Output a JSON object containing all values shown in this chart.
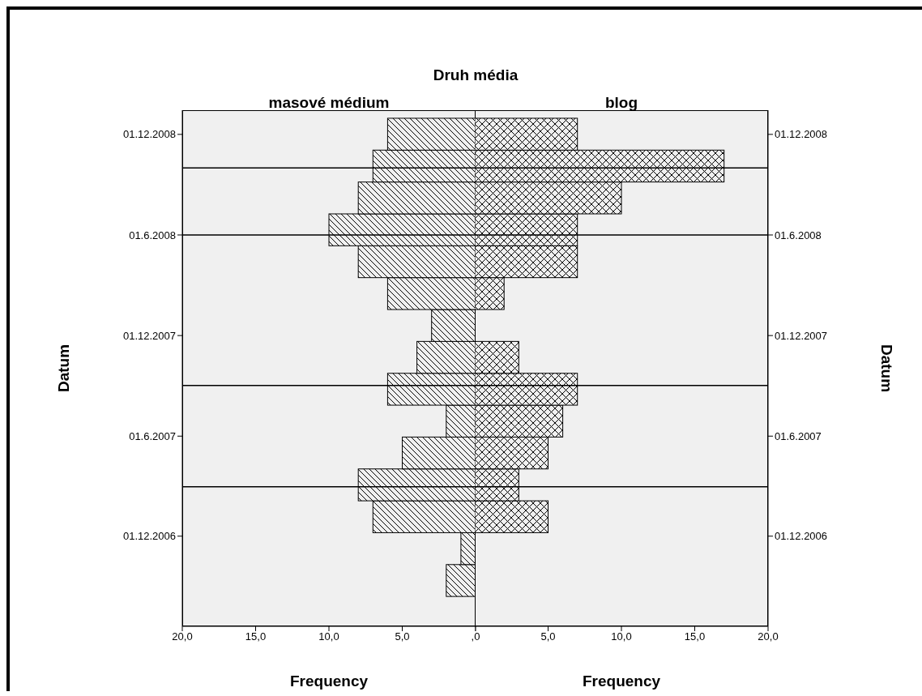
{
  "chart_data": [
    {
      "type": "histogram",
      "orientation": "horizontal",
      "title": "masové médium",
      "annotations": [
        "Druh média"
      ],
      "xlabel": "Frequency",
      "ylabel": "Datum",
      "color": "#000000",
      "bins": [
        "2006-08-13",
        "2006-10-10",
        "2006-12-07",
        "2007-02-03",
        "2007-04-02",
        "2007-05-30",
        "2007-07-27",
        "2007-09-23",
        "2007-11-20",
        "2008-01-17",
        "2008-03-15",
        "2008-05-12",
        "2008-07-09",
        "2008-09-05",
        "2008-11-02",
        "2008-12-30"
      ],
      "values": [
        2,
        1,
        7,
        8,
        5,
        2,
        6,
        4,
        3,
        6,
        8,
        10,
        8,
        7,
        6
      ],
      "xlim": [
        20,
        0
      ],
      "xticks": [
        {
          "value": 20,
          "label": "20,0"
        },
        {
          "value": 15,
          "label": "15,0"
        },
        {
          "value": 10,
          "label": "10,0"
        },
        {
          "value": 5,
          "label": "5,0"
        },
        {
          "value": 0,
          "label": ",0"
        }
      ],
      "ylim": [
        "2006-06-20",
        "2009-01-14"
      ],
      "yticks": [
        {
          "value": "2006-12-01",
          "label": "01.12.2006"
        },
        {
          "value": "2007-06-01",
          "label": "01.6.2007"
        },
        {
          "value": "2007-12-01",
          "label": "01.12.2007"
        },
        {
          "value": "2008-06-01",
          "label": "01.6.2008"
        },
        {
          "value": "2008-12-01",
          "label": "01.12.2008"
        }
      ],
      "ref_lines": [
        {
          "axis": "y",
          "value": "2007-03-01",
          "color": "#000000"
        },
        {
          "axis": "y",
          "value": "2007-09-01",
          "color": "#000000"
        },
        {
          "axis": "y",
          "value": "2008-06-01",
          "color": "#000000"
        },
        {
          "axis": "y",
          "value": "2008-10-01",
          "color": "#000000"
        }
      ]
    },
    {
      "type": "histogram",
      "orientation": "horizontal",
      "title": "blog",
      "xlabel": "Frequency",
      "ylabel": "Datum",
      "color": "#000000",
      "bins": [
        "2006-08-13",
        "2006-10-10",
        "2006-12-07",
        "2007-02-03",
        "2007-04-02",
        "2007-05-30",
        "2007-07-27",
        "2007-09-23",
        "2007-11-20",
        "2008-01-17",
        "2008-03-15",
        "2008-05-12",
        "2008-07-09",
        "2008-09-05",
        "2008-11-02",
        "2008-12-30"
      ],
      "values": [
        0,
        0,
        5,
        3,
        5,
        6,
        7,
        3,
        0,
        2,
        7,
        7,
        10,
        17,
        7
      ],
      "xlim": [
        0,
        20
      ],
      "xticks": [
        {
          "value": 0,
          "label": null
        },
        {
          "value": 5,
          "label": "5,0"
        },
        {
          "value": 10,
          "label": "10,0"
        },
        {
          "value": 15,
          "label": "15,0"
        },
        {
          "value": 20,
          "label": "20,0"
        }
      ],
      "ylim": [
        "2006-06-20",
        "2009-01-14"
      ],
      "yticks": [
        {
          "value": "2006-12-01",
          "label": "01.12.2006"
        },
        {
          "value": "2007-06-01",
          "label": "01.6.2007"
        },
        {
          "value": "2007-12-01",
          "label": "01.12.2007"
        },
        {
          "value": "2008-06-01",
          "label": "01.6.2008"
        },
        {
          "value": "2008-12-01",
          "label": "01.12.2008"
        }
      ],
      "ref_lines": [
        {
          "axis": "y",
          "value": "2007-03-01",
          "color": "#000000"
        },
        {
          "axis": "y",
          "value": "2007-09-01",
          "color": "#000000"
        },
        {
          "axis": "y",
          "value": "2008-06-01",
          "color": "#000000"
        },
        {
          "axis": "y",
          "value": "2008-10-01",
          "color": "#000000"
        }
      ]
    }
  ]
}
